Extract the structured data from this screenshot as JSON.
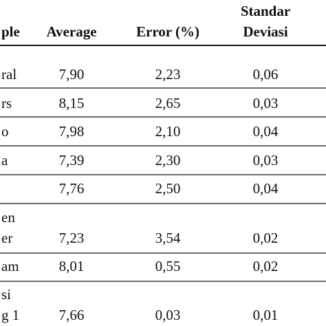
{
  "table": {
    "header": [
      "ple",
      "Average",
      "Error (%)",
      [
        "Standar",
        "Deviasi"
      ]
    ],
    "rows": [
      [
        "ral",
        "7,90",
        "2,23",
        "0,06"
      ],
      [
        "rs",
        "8,15",
        "2,65",
        "0,03"
      ],
      [
        "o",
        "7,98",
        "2,10",
        "0,04"
      ],
      [
        "a",
        "7,39",
        "2,30",
        "0,03"
      ],
      [
        null,
        "7,76",
        "2,50",
        "0,04"
      ],
      [
        [
          "en",
          "er"
        ],
        "7,23",
        "3,54",
        "0,02"
      ],
      [
        "am",
        "8,01",
        "0,55",
        "0,02"
      ],
      [
        [
          "si",
          "g 1"
        ],
        "7,66",
        "0,03",
        "0,01"
      ]
    ]
  }
}
